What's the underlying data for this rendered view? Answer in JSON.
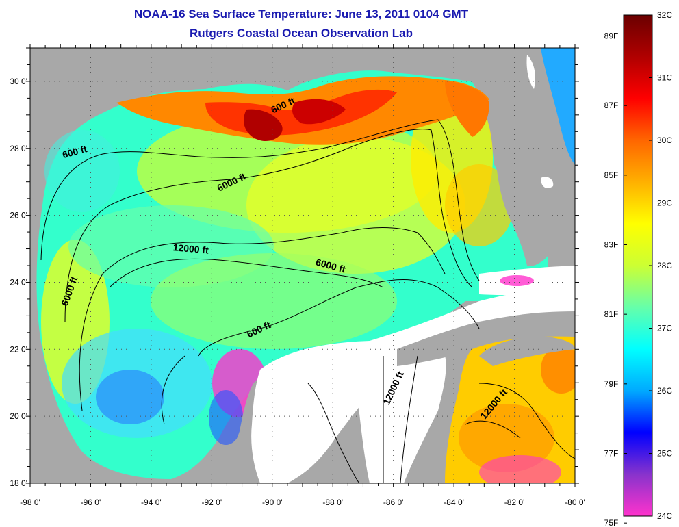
{
  "title_line1": "NOAA-16 Sea Surface Temperature:  June 13, 2011 0104 GMT",
  "title_line2": "Rutgers Coastal Ocean Observation Lab",
  "map": {
    "lon_range": [
      -98,
      -80
    ],
    "lat_range": [
      18,
      31
    ],
    "lon_ticks": [
      "-98 0'",
      "-96 0'",
      "-94 0'",
      "-92 0'",
      "-90 0'",
      "-88 0'",
      "-86 0'",
      "-84 0'",
      "-82 0'",
      "-80 0'"
    ],
    "lat_ticks": [
      "18 0'",
      "20 0'",
      "22 0'",
      "24 0'",
      "26 0'",
      "28 0'",
      "30 0'"
    ],
    "gridlines": "dotted",
    "land_color": "#a8a8a8",
    "nodata_color": "#ffffff",
    "contour_labels": [
      {
        "text": "600 ft",
        "lon": -89.6,
        "lat": 29.2
      },
      {
        "text": "600 ft",
        "lon": -96.5,
        "lat": 27.8
      },
      {
        "text": "6000 ft",
        "lon": -91.3,
        "lat": 26.9
      },
      {
        "text": "12000 ft",
        "lon": -92.7,
        "lat": 24.9
      },
      {
        "text": "6000 ft",
        "lon": -88.1,
        "lat": 24.4
      },
      {
        "text": "6000 ft",
        "lon": -96.6,
        "lat": 23.7
      },
      {
        "text": "600 ft",
        "lon": -90.4,
        "lat": 22.5
      },
      {
        "text": "12000 ft",
        "lon": -85.9,
        "lat": 20.8
      },
      {
        "text": "12000 ft",
        "lon": -82.6,
        "lat": 20.3
      }
    ]
  },
  "colorbar": {
    "celsius_labels": [
      "32C",
      "31C",
      "30C",
      "29C",
      "28C",
      "27C",
      "26C",
      "25C",
      "24C"
    ],
    "fahrenheit_labels": [
      "89F",
      "87F",
      "85F",
      "83F",
      "81F",
      "79F",
      "77F",
      "75F"
    ],
    "gradient": [
      "#ff33cc",
      "#8833cc",
      "#0000ff",
      "#00aaff",
      "#00ffff",
      "#66ffaa",
      "#ccff33",
      "#ffff00",
      "#ffb000",
      "#ff6600",
      "#ff0000",
      "#b00000",
      "#6b0000"
    ]
  }
}
